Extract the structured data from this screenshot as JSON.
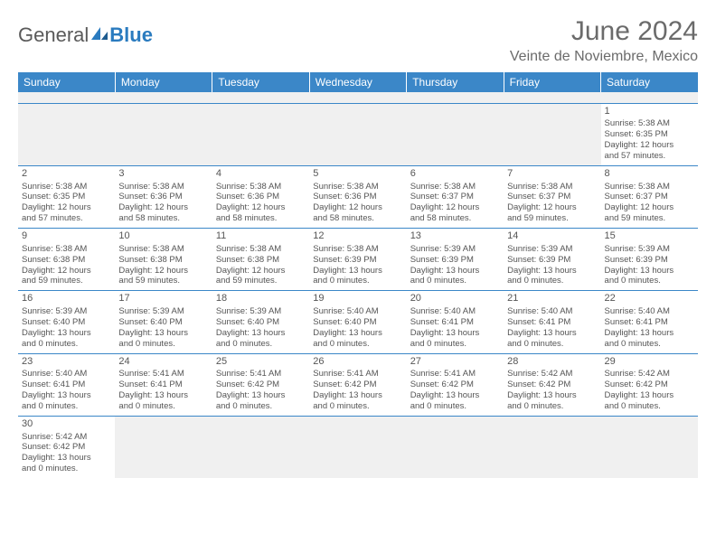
{
  "logo": {
    "text1": "General",
    "text2": "Blue"
  },
  "title": "June 2024",
  "location": "Veinte de Noviembre, Mexico",
  "day_headers": [
    "Sunday",
    "Monday",
    "Tuesday",
    "Wednesday",
    "Thursday",
    "Friday",
    "Saturday"
  ],
  "colors": {
    "header_bg": "#3b87c8",
    "header_text": "#ffffff",
    "cell_border": "#3b87c8",
    "text": "#555555",
    "empty_bg": "#f0f0f0"
  },
  "weeks": [
    [
      null,
      null,
      null,
      null,
      null,
      null,
      {
        "n": "1",
        "sr": "Sunrise: 5:38 AM",
        "ss": "Sunset: 6:35 PM",
        "d1": "Daylight: 12 hours",
        "d2": "and 57 minutes."
      }
    ],
    [
      {
        "n": "2",
        "sr": "Sunrise: 5:38 AM",
        "ss": "Sunset: 6:35 PM",
        "d1": "Daylight: 12 hours",
        "d2": "and 57 minutes."
      },
      {
        "n": "3",
        "sr": "Sunrise: 5:38 AM",
        "ss": "Sunset: 6:36 PM",
        "d1": "Daylight: 12 hours",
        "d2": "and 58 minutes."
      },
      {
        "n": "4",
        "sr": "Sunrise: 5:38 AM",
        "ss": "Sunset: 6:36 PM",
        "d1": "Daylight: 12 hours",
        "d2": "and 58 minutes."
      },
      {
        "n": "5",
        "sr": "Sunrise: 5:38 AM",
        "ss": "Sunset: 6:36 PM",
        "d1": "Daylight: 12 hours",
        "d2": "and 58 minutes."
      },
      {
        "n": "6",
        "sr": "Sunrise: 5:38 AM",
        "ss": "Sunset: 6:37 PM",
        "d1": "Daylight: 12 hours",
        "d2": "and 58 minutes."
      },
      {
        "n": "7",
        "sr": "Sunrise: 5:38 AM",
        "ss": "Sunset: 6:37 PM",
        "d1": "Daylight: 12 hours",
        "d2": "and 59 minutes."
      },
      {
        "n": "8",
        "sr": "Sunrise: 5:38 AM",
        "ss": "Sunset: 6:37 PM",
        "d1": "Daylight: 12 hours",
        "d2": "and 59 minutes."
      }
    ],
    [
      {
        "n": "9",
        "sr": "Sunrise: 5:38 AM",
        "ss": "Sunset: 6:38 PM",
        "d1": "Daylight: 12 hours",
        "d2": "and 59 minutes."
      },
      {
        "n": "10",
        "sr": "Sunrise: 5:38 AM",
        "ss": "Sunset: 6:38 PM",
        "d1": "Daylight: 12 hours",
        "d2": "and 59 minutes."
      },
      {
        "n": "11",
        "sr": "Sunrise: 5:38 AM",
        "ss": "Sunset: 6:38 PM",
        "d1": "Daylight: 12 hours",
        "d2": "and 59 minutes."
      },
      {
        "n": "12",
        "sr": "Sunrise: 5:38 AM",
        "ss": "Sunset: 6:39 PM",
        "d1": "Daylight: 13 hours",
        "d2": "and 0 minutes."
      },
      {
        "n": "13",
        "sr": "Sunrise: 5:39 AM",
        "ss": "Sunset: 6:39 PM",
        "d1": "Daylight: 13 hours",
        "d2": "and 0 minutes."
      },
      {
        "n": "14",
        "sr": "Sunrise: 5:39 AM",
        "ss": "Sunset: 6:39 PM",
        "d1": "Daylight: 13 hours",
        "d2": "and 0 minutes."
      },
      {
        "n": "15",
        "sr": "Sunrise: 5:39 AM",
        "ss": "Sunset: 6:39 PM",
        "d1": "Daylight: 13 hours",
        "d2": "and 0 minutes."
      }
    ],
    [
      {
        "n": "16",
        "sr": "Sunrise: 5:39 AM",
        "ss": "Sunset: 6:40 PM",
        "d1": "Daylight: 13 hours",
        "d2": "and 0 minutes."
      },
      {
        "n": "17",
        "sr": "Sunrise: 5:39 AM",
        "ss": "Sunset: 6:40 PM",
        "d1": "Daylight: 13 hours",
        "d2": "and 0 minutes."
      },
      {
        "n": "18",
        "sr": "Sunrise: 5:39 AM",
        "ss": "Sunset: 6:40 PM",
        "d1": "Daylight: 13 hours",
        "d2": "and 0 minutes."
      },
      {
        "n": "19",
        "sr": "Sunrise: 5:40 AM",
        "ss": "Sunset: 6:40 PM",
        "d1": "Daylight: 13 hours",
        "d2": "and 0 minutes."
      },
      {
        "n": "20",
        "sr": "Sunrise: 5:40 AM",
        "ss": "Sunset: 6:41 PM",
        "d1": "Daylight: 13 hours",
        "d2": "and 0 minutes."
      },
      {
        "n": "21",
        "sr": "Sunrise: 5:40 AM",
        "ss": "Sunset: 6:41 PM",
        "d1": "Daylight: 13 hours",
        "d2": "and 0 minutes."
      },
      {
        "n": "22",
        "sr": "Sunrise: 5:40 AM",
        "ss": "Sunset: 6:41 PM",
        "d1": "Daylight: 13 hours",
        "d2": "and 0 minutes."
      }
    ],
    [
      {
        "n": "23",
        "sr": "Sunrise: 5:40 AM",
        "ss": "Sunset: 6:41 PM",
        "d1": "Daylight: 13 hours",
        "d2": "and 0 minutes."
      },
      {
        "n": "24",
        "sr": "Sunrise: 5:41 AM",
        "ss": "Sunset: 6:41 PM",
        "d1": "Daylight: 13 hours",
        "d2": "and 0 minutes."
      },
      {
        "n": "25",
        "sr": "Sunrise: 5:41 AM",
        "ss": "Sunset: 6:42 PM",
        "d1": "Daylight: 13 hours",
        "d2": "and 0 minutes."
      },
      {
        "n": "26",
        "sr": "Sunrise: 5:41 AM",
        "ss": "Sunset: 6:42 PM",
        "d1": "Daylight: 13 hours",
        "d2": "and 0 minutes."
      },
      {
        "n": "27",
        "sr": "Sunrise: 5:41 AM",
        "ss": "Sunset: 6:42 PM",
        "d1": "Daylight: 13 hours",
        "d2": "and 0 minutes."
      },
      {
        "n": "28",
        "sr": "Sunrise: 5:42 AM",
        "ss": "Sunset: 6:42 PM",
        "d1": "Daylight: 13 hours",
        "d2": "and 0 minutes."
      },
      {
        "n": "29",
        "sr": "Sunrise: 5:42 AM",
        "ss": "Sunset: 6:42 PM",
        "d1": "Daylight: 13 hours",
        "d2": "and 0 minutes."
      }
    ],
    [
      {
        "n": "30",
        "sr": "Sunrise: 5:42 AM",
        "ss": "Sunset: 6:42 PM",
        "d1": "Daylight: 13 hours",
        "d2": "and 0 minutes."
      },
      null,
      null,
      null,
      null,
      null,
      null
    ]
  ]
}
